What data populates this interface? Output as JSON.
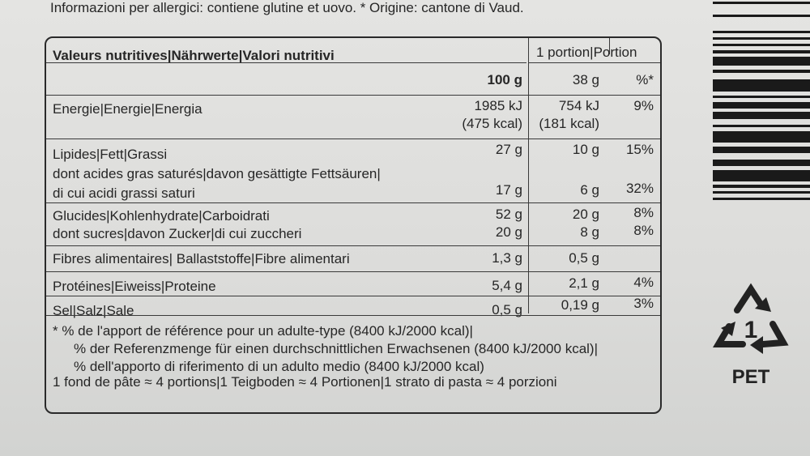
{
  "allergen_note": "Informazioni per allergici: contiene glutine et uovo. * Origine: cantone di Vaud.",
  "table": {
    "header": {
      "label": "Valeurs nutritives|Nährwerte|Valori nutritivi",
      "portion": "1 portion|Portion"
    },
    "subheader": {
      "per100": "100 g",
      "perportion": "38 g",
      "pct": "%*"
    },
    "rows": [
      {
        "label": "Energie|Energie|Energia",
        "per100": "1985 kJ",
        "per100b": "(475 kcal)",
        "portion": "754 kJ",
        "portionb": "(181 kcal)",
        "pct": "9%"
      },
      {
        "label": "Lipides|Fett|Grassi",
        "per100": "27 g",
        "portion": "10 g",
        "pct": "15%"
      },
      {
        "label": "dont acides gras saturés|davon gesättigte Fettsäuren|",
        "label2": "di cui acidi grassi saturi",
        "per100": "17 g",
        "portion": "6 g",
        "pct": "32%"
      },
      {
        "label": "Glucides|Kohlenhydrate|Carboidrati",
        "per100": "52 g",
        "portion": "20 g",
        "pct": "8%"
      },
      {
        "label": "dont sucres|davon Zucker|di cui zuccheri",
        "per100": "20 g",
        "portion": "8 g",
        "pct": "8%"
      },
      {
        "label": "Fibres alimentaires| Ballaststoffe|Fibre alimentari",
        "per100": "1,3 g",
        "portion": "0,5 g",
        "pct": ""
      },
      {
        "label": "Protéines|Eiweiss|Proteine",
        "per100": "5,4 g",
        "portion": "2,1 g",
        "pct": "4%"
      },
      {
        "label": "Sel|Salz|Sale",
        "per100": "0,5 g",
        "portion": "0,19 g",
        "pct": "3%"
      }
    ],
    "footnotes": [
      "* % de l'apport de référence pour un adulte-type (8400 kJ/2000 kcal)|",
      "% der Referenzmenge für einen durchschnittlichen Erwachsenen (8400 kJ/2000 kcal)|",
      "% dell'apporto di riferimento di un adulto medio (8400 kJ/2000 kcal)",
      "1 fond de pâte ≈ 4 portions|1 Teigboden ≈ 4 Portionen|1 strato di pasta ≈ 4 porzioni"
    ]
  },
  "recycling": {
    "icon": "recycle-pet-1-icon",
    "number": "1",
    "label": "PET"
  },
  "barcode": {
    "icon": "barcode-icon"
  }
}
